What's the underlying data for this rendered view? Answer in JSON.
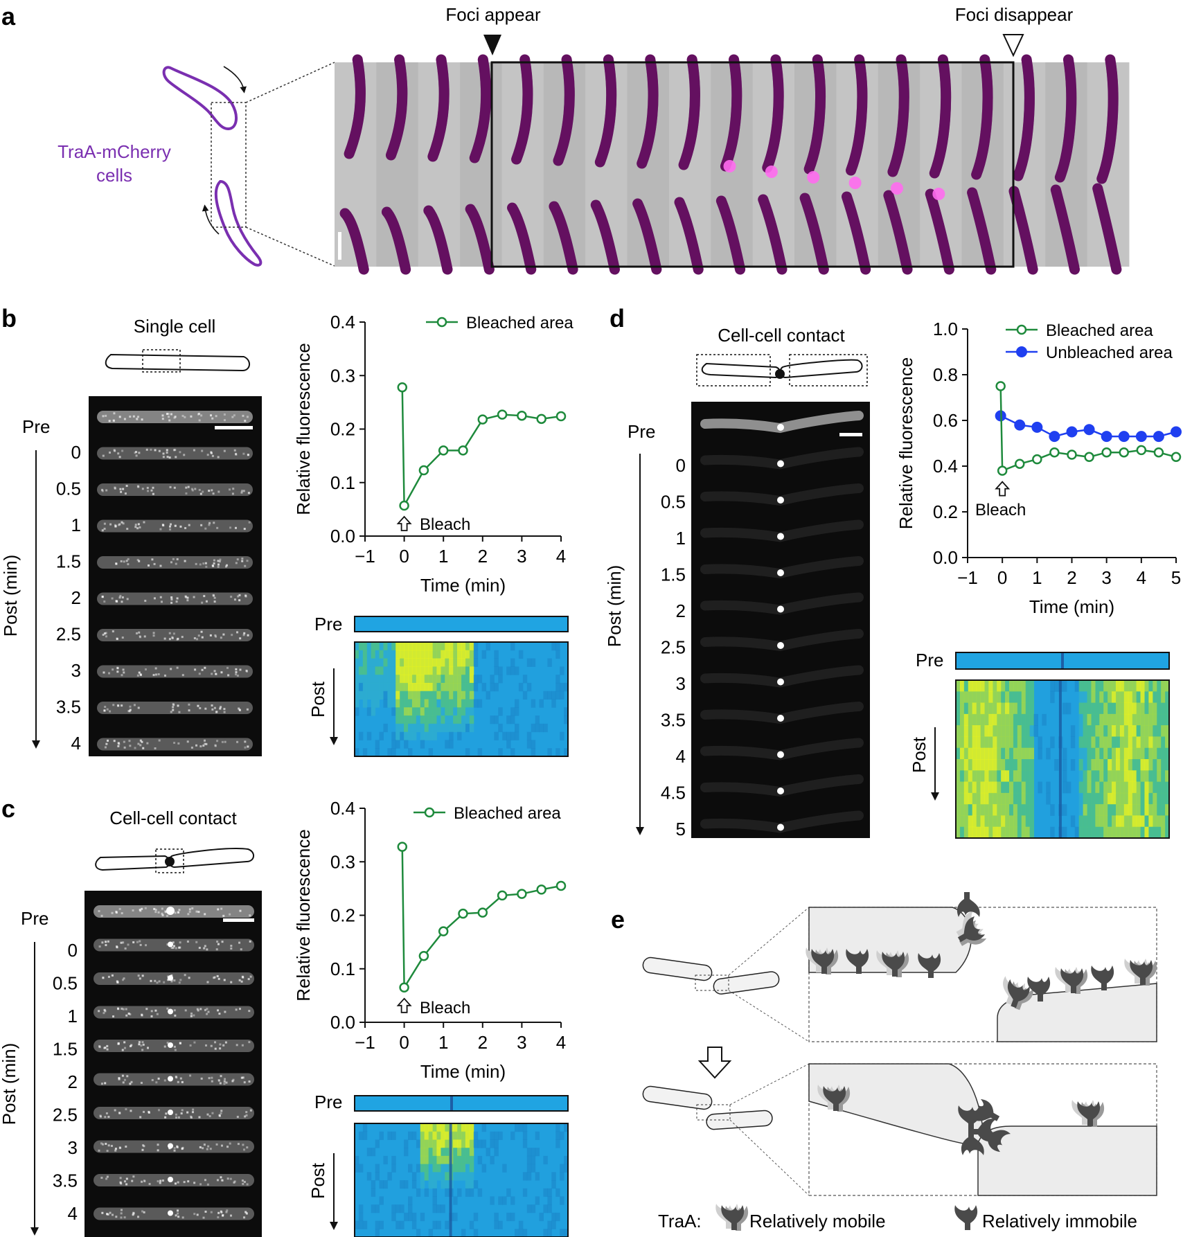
{
  "panels": {
    "a": {
      "letter": "a",
      "foci_appear": "Foci appear",
      "foci_disappear": "Foci disappear",
      "cells_label_line1": "TraA-mCherry",
      "cells_label_line2": "cells"
    },
    "b": {
      "letter": "b",
      "schematic_title": "Single cell",
      "pre_label": "Pre",
      "post_axis_label": "Post (min)",
      "timepoints": [
        "0",
        "0.5",
        "1",
        "1.5",
        "2",
        "2.5",
        "3",
        "3.5",
        "4"
      ],
      "kymo_pre": "Pre",
      "kymo_post": "Post"
    },
    "c": {
      "letter": "c",
      "schematic_title": "Cell-cell contact",
      "pre_label": "Pre",
      "post_axis_label": "Post (min)",
      "timepoints": [
        "0",
        "0.5",
        "1",
        "1.5",
        "2",
        "2.5",
        "3",
        "3.5",
        "4"
      ],
      "kymo_pre": "Pre",
      "kymo_post": "Post"
    },
    "d": {
      "letter": "d",
      "schematic_title": "Cell-cell contact",
      "pre_label": "Pre",
      "post_axis_label": "Post (min)",
      "timepoints": [
        "0",
        "0.5",
        "1",
        "1.5",
        "2",
        "2.5",
        "3",
        "3.5",
        "4",
        "4.5",
        "5"
      ],
      "kymo_pre": "Pre",
      "kymo_post": "Post"
    },
    "e": {
      "letter": "e",
      "legend_prefix": "TraA:",
      "legend_mobile": "Relatively mobile",
      "legend_immobile": "Relatively immobile"
    }
  },
  "colors": {
    "bleached": "#1e8a3c",
    "unbleached": "#1f3ff0",
    "magenta": "#d21ed2",
    "cell_outline": "#7a2fb0",
    "kymo_base": "#21a3e0",
    "kymo_hot": "#e4f020"
  },
  "chart_data": [
    {
      "panel": "b",
      "type": "line",
      "xlabel": "Time (min)",
      "ylabel": "Relative fluorescence",
      "xlim": [
        -1,
        4
      ],
      "ylim": [
        0,
        0.4
      ],
      "xticks": [
        "−1",
        "0",
        "1",
        "2",
        "3",
        "4"
      ],
      "yticks": [
        "0.0",
        "0.1",
        "0.2",
        "0.3",
        "0.4"
      ],
      "annotation": "Bleach",
      "legend_position": "top-right",
      "series": [
        {
          "name": "Bleached area",
          "marker": "open-circle",
          "x": [
            -0.05,
            0,
            0.5,
            1,
            1.5,
            2,
            2.5,
            3,
            3.5,
            4
          ],
          "values": [
            0.278,
            0.057,
            0.123,
            0.16,
            0.16,
            0.218,
            0.227,
            0.225,
            0.219,
            0.224
          ]
        }
      ]
    },
    {
      "panel": "c",
      "type": "line",
      "xlabel": "Time (min)",
      "ylabel": "Relative fluorescence",
      "xlim": [
        -1,
        4
      ],
      "ylim": [
        0,
        0.4
      ],
      "xticks": [
        "−1",
        "0",
        "1",
        "2",
        "3",
        "4"
      ],
      "yticks": [
        "0.0",
        "0.1",
        "0.2",
        "0.3",
        "0.4"
      ],
      "annotation": "Bleach",
      "legend_position": "top-right",
      "series": [
        {
          "name": "Bleached area",
          "marker": "open-circle",
          "x": [
            -0.05,
            0,
            0.5,
            1,
            1.5,
            2,
            2.5,
            3,
            3.5,
            4
          ],
          "values": [
            0.328,
            0.065,
            0.124,
            0.17,
            0.203,
            0.205,
            0.237,
            0.24,
            0.248,
            0.255
          ]
        }
      ]
    },
    {
      "panel": "d",
      "type": "line",
      "xlabel": "Time (min)",
      "ylabel": "Relative fluorescence",
      "xlim": [
        -1,
        5
      ],
      "ylim": [
        0,
        1.0
      ],
      "xticks": [
        "−1",
        "0",
        "1",
        "2",
        "3",
        "4",
        "5"
      ],
      "yticks": [
        "0.0",
        "0.2",
        "0.4",
        "0.6",
        "0.8",
        "1.0"
      ],
      "annotation": "Bleach",
      "legend_position": "top-right",
      "series": [
        {
          "name": "Bleached area",
          "marker": "open-circle",
          "x": [
            -0.05,
            0,
            0.5,
            1,
            1.5,
            2,
            2.5,
            3,
            3.5,
            4,
            4.5,
            5
          ],
          "values": [
            0.75,
            0.38,
            0.41,
            0.43,
            0.46,
            0.45,
            0.44,
            0.46,
            0.46,
            0.47,
            0.46,
            0.44
          ]
        },
        {
          "name": "Unbleached area",
          "marker": "filled-circle",
          "x": [
            -0.05,
            0.5,
            1,
            1.5,
            2,
            2.5,
            3,
            3.5,
            4,
            4.5,
            5
          ],
          "values": [
            0.62,
            0.58,
            0.57,
            0.53,
            0.55,
            0.56,
            0.53,
            0.53,
            0.53,
            0.53,
            0.55
          ]
        }
      ]
    }
  ]
}
